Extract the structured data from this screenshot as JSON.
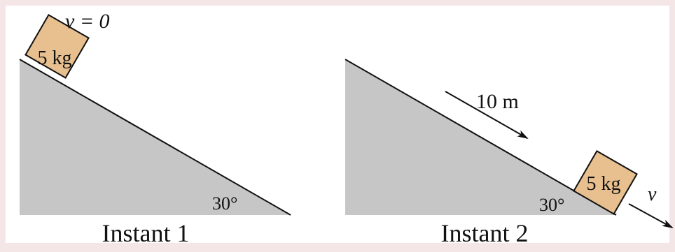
{
  "colors": {
    "page_border": "#f4e6e6",
    "background": "#ffffff",
    "incline_fill": "#c6c6c6",
    "block_fill": "#e8bf8e",
    "stroke": "#111111"
  },
  "instant1": {
    "caption": "Instant 1",
    "block_label": "5 kg",
    "velocity_label": "v = 0",
    "angle_label": "30°"
  },
  "instant2": {
    "caption": "Instant 2",
    "block_label": "5 kg",
    "distance_label": "10 m",
    "velocity_label": "v",
    "angle_label": "30°"
  }
}
